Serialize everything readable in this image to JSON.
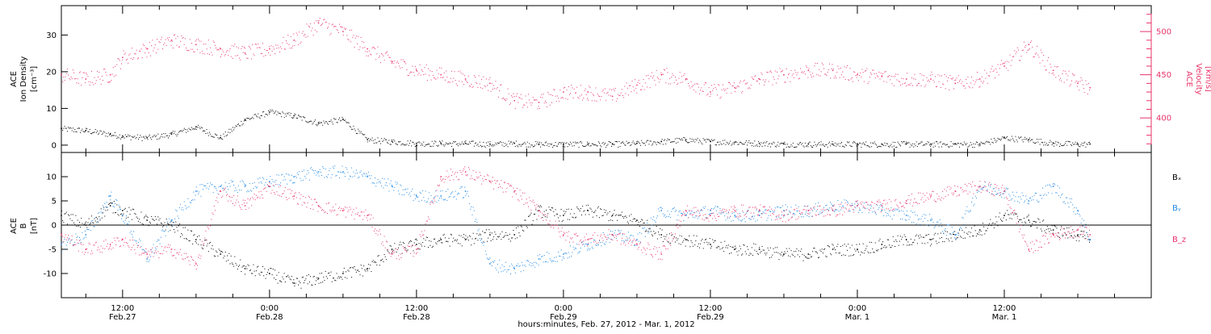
{
  "colors": {
    "black": "#000000",
    "blue": "#1e88e5",
    "pink": "#e8336a"
  },
  "xaxis": {
    "ticks": [
      {
        "time": "12:00",
        "date": "Feb.27"
      },
      {
        "time": "0:00",
        "date": "Feb.28"
      },
      {
        "time": "12:00",
        "date": "Feb.28"
      },
      {
        "time": "0:00",
        "date": "Feb.29"
      },
      {
        "time": "12:00",
        "date": "Feb.29"
      },
      {
        "time": "0:00",
        "date": "Mar. 1"
      },
      {
        "time": "12:00",
        "date": "Mar. 1"
      }
    ],
    "title": "hours:minutes, Feb. 27, 2012 - Mar. 1, 2012"
  },
  "panel1": {
    "left_label": [
      "ACE",
      "Ion Density",
      "[cm⁻³]"
    ],
    "right_label": [
      "ACE",
      "Velocity",
      "[km/s]"
    ]
  },
  "panel2": {
    "left_label": [
      "ACE",
      "B",
      "[nT]"
    ],
    "legend": [
      "Bₓ",
      "Bᵧ",
      "B_z"
    ]
  },
  "chart_data": [
    {
      "type": "scatter",
      "title": "",
      "x_range_hours": [
        -5,
        84
      ],
      "ylim_left": [
        -2,
        38
      ],
      "yticks_left": [
        0,
        10,
        20,
        30
      ],
      "ylim_right": [
        360,
        530
      ],
      "yticks_right": [
        400,
        450,
        500
      ],
      "series": [
        {
          "name": "Ion Density",
          "axis": "left",
          "color": "black",
          "x": [
            -5,
            -3,
            -1,
            0,
            2,
            4,
            6,
            8,
            10,
            12,
            14,
            16,
            18,
            20,
            22,
            24,
            26,
            28,
            30,
            32,
            34,
            36,
            38,
            40,
            42,
            44,
            46,
            48,
            50,
            52,
            54,
            56,
            58,
            60,
            62,
            64,
            66,
            68,
            70,
            72,
            74,
            76,
            78,
            79
          ],
          "values": [
            4.5,
            4,
            3,
            2.5,
            2,
            3,
            5,
            2,
            7,
            9,
            8,
            6,
            7,
            1.5,
            1,
            0.5,
            0.5,
            0.5,
            0.3,
            0.5,
            0.3,
            0.3,
            0.3,
            0.3,
            0.5,
            1,
            1.5,
            1,
            0.8,
            0.5,
            0.3,
            0.3,
            0.3,
            0.3,
            0.3,
            0.3,
            0.3,
            0.3,
            0.3,
            2,
            1.5,
            0.5,
            0.3,
            0.3
          ]
        },
        {
          "name": "Velocity",
          "axis": "right",
          "color": "pink",
          "x": [
            -5,
            -3,
            -1,
            0,
            2,
            4,
            6,
            8,
            10,
            12,
            14,
            16,
            18,
            20,
            22,
            24,
            26,
            28,
            30,
            32,
            34,
            36,
            38,
            40,
            42,
            44,
            46,
            48,
            50,
            52,
            54,
            56,
            58,
            60,
            62,
            64,
            66,
            68,
            70,
            72,
            74,
            76,
            78,
            79
          ],
          "values": [
            450,
            445,
            450,
            470,
            480,
            490,
            485,
            480,
            475,
            480,
            490,
            510,
            500,
            480,
            465,
            455,
            450,
            445,
            440,
            420,
            418,
            430,
            430,
            425,
            438,
            450,
            445,
            430,
            435,
            445,
            450,
            455,
            455,
            450,
            448,
            445,
            445,
            440,
            445,
            460,
            485,
            455,
            440,
            435
          ]
        }
      ]
    },
    {
      "type": "scatter",
      "title": "",
      "x_range_hours": [
        -5,
        84
      ],
      "ylim": [
        -15,
        15
      ],
      "yticks": [
        -10,
        -5,
        0,
        5,
        10
      ],
      "series": [
        {
          "name": "Bₓ",
          "color": "black",
          "x": [
            -5,
            -3,
            -1,
            0,
            2,
            4,
            6,
            8,
            10,
            12,
            14,
            16,
            18,
            20,
            22,
            24,
            26,
            28,
            30,
            32,
            34,
            36,
            38,
            40,
            42,
            44,
            46,
            48,
            50,
            52,
            54,
            56,
            58,
            60,
            62,
            64,
            66,
            68,
            70,
            72,
            74,
            76,
            78,
            79
          ],
          "values": [
            2,
            0,
            4,
            3,
            1,
            0,
            -3,
            -6,
            -9,
            -10,
            -12,
            -11,
            -10,
            -9,
            -5,
            -4,
            -3,
            -3,
            -2,
            -2,
            3,
            2,
            3,
            2,
            1,
            -2,
            -3,
            -4,
            -5,
            -5,
            -6,
            -6,
            -5,
            -5,
            -4,
            -3,
            -3,
            -2,
            -1,
            2,
            1,
            -1,
            -2,
            -3
          ]
        },
        {
          "name": "Bᵧ",
          "color": "blue",
          "x": [
            -5,
            -3,
            -1,
            0,
            2,
            4,
            6,
            8,
            10,
            12,
            14,
            16,
            18,
            20,
            22,
            24,
            26,
            28,
            30,
            32,
            34,
            36,
            38,
            40,
            42,
            44,
            46,
            48,
            50,
            52,
            54,
            56,
            58,
            60,
            62,
            64,
            66,
            68,
            70,
            72,
            74,
            76,
            78,
            79
          ],
          "values": [
            -4,
            -2,
            6,
            2,
            -7,
            1,
            7,
            8,
            8,
            9,
            10,
            11,
            11,
            10,
            8,
            6,
            6,
            7,
            -8,
            -9,
            -7,
            -6,
            -4,
            -2,
            -3,
            3,
            2,
            3,
            2,
            2,
            3,
            3,
            4,
            4,
            3,
            2,
            1,
            -2,
            8,
            7,
            5,
            8,
            3,
            -3
          ]
        },
        {
          "name": "B_z",
          "color": "pink",
          "x": [
            -5,
            -3,
            -1,
            0,
            2,
            4,
            6,
            8,
            10,
            12,
            14,
            16,
            18,
            20,
            22,
            24,
            26,
            28,
            30,
            32,
            34,
            36,
            38,
            40,
            42,
            44,
            46,
            48,
            50,
            52,
            54,
            56,
            58,
            60,
            62,
            64,
            66,
            68,
            70,
            72,
            74,
            76,
            78,
            79
          ],
          "values": [
            -2,
            -5,
            -4,
            -3,
            -6,
            -5,
            -8,
            7,
            4,
            8,
            6,
            4,
            3,
            2,
            -6,
            -5,
            10,
            11,
            9,
            7,
            3,
            -2,
            -3,
            -2,
            -4,
            -6,
            3,
            2,
            3,
            3,
            2,
            3,
            3,
            4,
            4,
            5,
            6,
            7,
            8,
            7,
            -5,
            -2,
            -1,
            -2
          ]
        }
      ]
    }
  ]
}
